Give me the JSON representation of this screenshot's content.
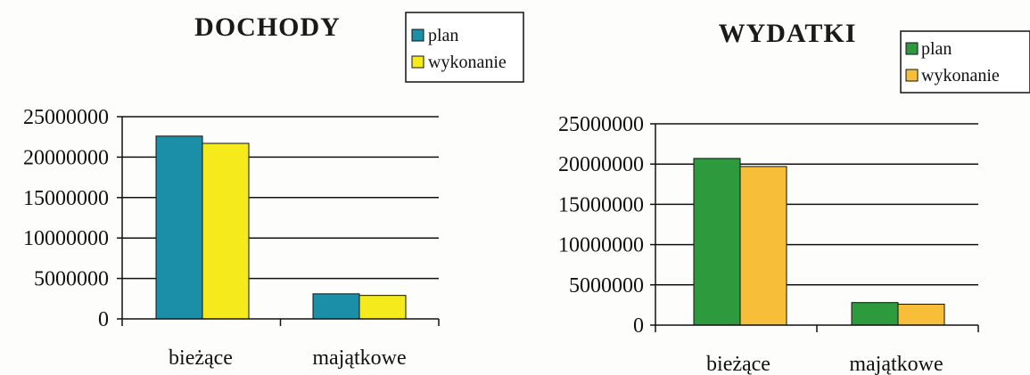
{
  "chart_data": [
    {
      "type": "bar",
      "title": "DOCHODY",
      "categories": [
        "bieżące",
        "majątkowe"
      ],
      "series": [
        {
          "name": "plan",
          "values": [
            22600000,
            3100000
          ]
        },
        {
          "name": "wykonanie",
          "values": [
            21700000,
            2900000
          ]
        }
      ],
      "yticks": [
        "25000000",
        "20000000",
        "15000000",
        "10000000",
        "5000000",
        "0"
      ],
      "ylim": [
        0,
        25000000
      ],
      "grid": true,
      "legend_position": "top-right",
      "colors": [
        "#1b8fa8",
        "#f5ea1c"
      ]
    },
    {
      "type": "bar",
      "title": "WYDATKI",
      "categories": [
        "bieżące",
        "majątkowe"
      ],
      "series": [
        {
          "name": "plan",
          "values": [
            20700000,
            2800000
          ]
        },
        {
          "name": "wykonanie",
          "values": [
            19700000,
            2600000
          ]
        }
      ],
      "yticks": [
        "25000000",
        "20000000",
        "15000000",
        "10000000",
        "5000000",
        "0"
      ],
      "ylim": [
        0,
        25000000
      ],
      "grid": true,
      "legend_position": "top-right",
      "colors": [
        "#2e9a3e",
        "#f7be3a"
      ]
    }
  ]
}
